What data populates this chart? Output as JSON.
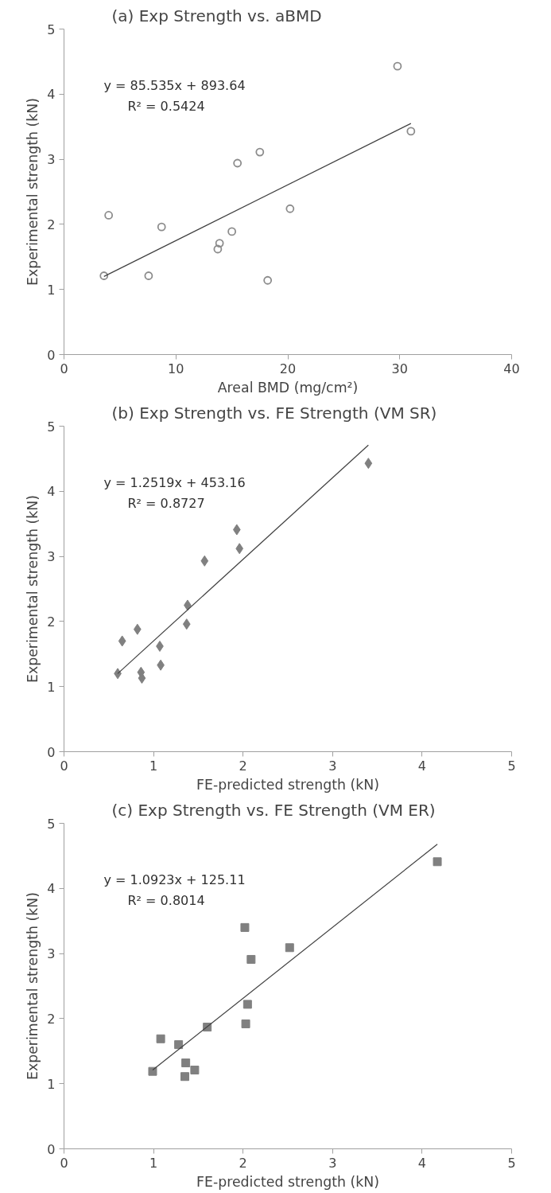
{
  "chart_data": [
    {
      "type": "scatter",
      "title": "(a) Exp Strength vs. aBMD",
      "xlabel": "Areal BMD (mg/cm²)",
      "ylabel": "Experimental strength (kN)",
      "xlim": [
        0,
        40
      ],
      "xticks": [
        0,
        10,
        20,
        30,
        40
      ],
      "ylim": [
        0,
        5
      ],
      "yticks": [
        0,
        1,
        2,
        3,
        4,
        5
      ],
      "annotations": [
        "y = 85.535x + 893.64",
        "R² = 0.5424"
      ],
      "series": [
        {
          "color": "#8c8c8c",
          "marker": "circle",
          "x": [
            3.57,
            3.99,
            7.56,
            8.72,
            13.74,
            13.9,
            15.0,
            15.5,
            17.5,
            18.2,
            20.2,
            29.8,
            31.0
          ],
          "values": [
            1.21,
            2.14,
            1.21,
            1.96,
            1.62,
            1.71,
            1.89,
            2.94,
            3.11,
            1.14,
            2.24,
            4.43,
            3.43
          ]
        },
        {
          "type": "line",
          "color": "#404040",
          "x": [
            3.57,
            31.0
          ],
          "values": [
            1.2,
            3.55
          ]
        }
      ]
    },
    {
      "type": "scatter",
      "title": "(b) Exp Strength vs. FE Strength (VM SR)",
      "xlabel": "FE-predicted strength (kN)",
      "ylabel": "Experimental strength (kN)",
      "xlim": [
        0,
        5
      ],
      "xticks": [
        0,
        1,
        2,
        3,
        4,
        5
      ],
      "ylim": [
        0,
        5
      ],
      "yticks": [
        0,
        1,
        2,
        3,
        4,
        5
      ],
      "annotations": [
        "y = 1.2519x + 453.16",
        "R² = 0.8727"
      ],
      "series": [
        {
          "color": "#808080",
          "marker": "diamond",
          "x": [
            0.6,
            0.65,
            0.82,
            0.86,
            0.87,
            1.07,
            1.08,
            1.37,
            1.38,
            1.57,
            1.93,
            1.96,
            3.4
          ],
          "values": [
            1.2,
            1.7,
            1.88,
            1.22,
            1.13,
            1.62,
            1.33,
            1.96,
            2.25,
            2.93,
            3.41,
            3.12,
            4.43
          ]
        },
        {
          "type": "line",
          "color": "#404040",
          "x": [
            0.6,
            3.4
          ],
          "values": [
            1.2,
            4.71
          ]
        }
      ]
    },
    {
      "type": "scatter",
      "title": "(c) Exp Strength vs. FE Strength (VM ER)",
      "xlabel": "FE-predicted strength (kN)",
      "ylabel": "Experimental strength (kN)",
      "xlim": [
        0,
        5
      ],
      "xticks": [
        0,
        1,
        2,
        3,
        4,
        5
      ],
      "ylim": [
        0,
        5
      ],
      "yticks": [
        0,
        1,
        2,
        3,
        4,
        5
      ],
      "annotations": [
        "y = 1.0923x + 125.11",
        "R² = 0.8014"
      ],
      "series": [
        {
          "color": "#808080",
          "marker": "square",
          "x": [
            0.99,
            1.08,
            1.28,
            1.35,
            1.36,
            1.46,
            1.6,
            2.02,
            2.03,
            2.05,
            2.09,
            2.52,
            4.17
          ],
          "values": [
            1.19,
            1.69,
            1.6,
            1.11,
            1.32,
            1.21,
            1.87,
            3.4,
            1.92,
            2.22,
            2.91,
            3.09,
            4.41
          ]
        },
        {
          "type": "line",
          "color": "#404040",
          "x": [
            0.99,
            4.17
          ],
          "values": [
            1.21,
            4.68
          ]
        }
      ]
    }
  ]
}
